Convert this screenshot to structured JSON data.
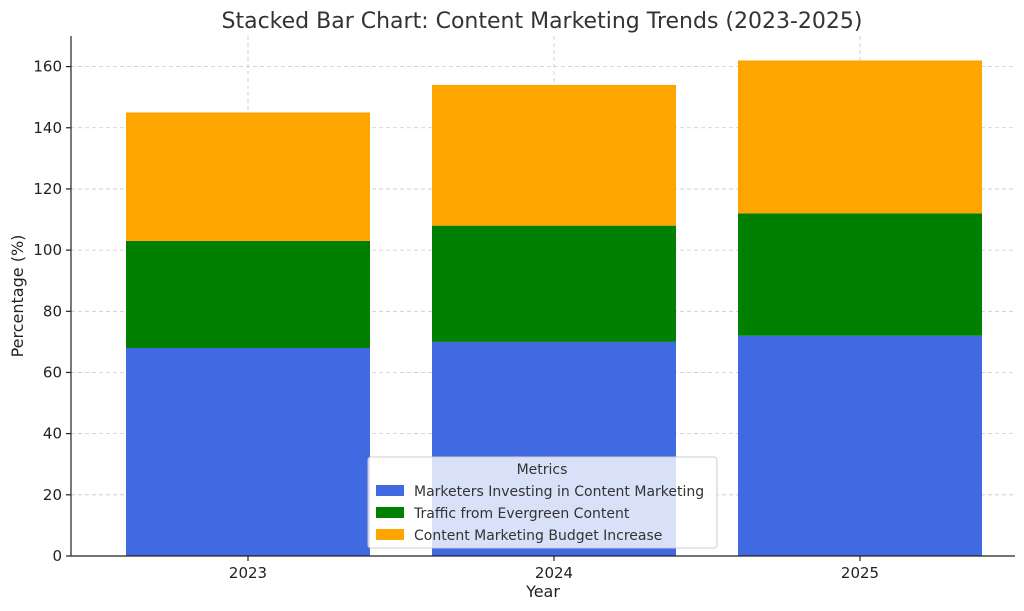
{
  "chart_data": {
    "type": "bar",
    "stacked": true,
    "title": "Stacked Bar Chart: Content Marketing Trends (2023-2025)",
    "xlabel": "Year",
    "ylabel": "Percentage (%)",
    "categories": [
      "2023",
      "2024",
      "2025"
    ],
    "ylim": [
      0,
      170
    ],
    "yticks": [
      0,
      20,
      40,
      60,
      80,
      100,
      120,
      140,
      160
    ],
    "grid": true,
    "series": [
      {
        "name": "Marketers Investing in Content Marketing",
        "values": [
          68,
          70,
          72
        ],
        "color": "#4169E1"
      },
      {
        "name": "Traffic from Evergreen Content",
        "values": [
          35,
          38,
          40
        ],
        "color": "#008000"
      },
      {
        "name": "Content Marketing Budget Increase",
        "values": [
          42,
          46,
          50
        ],
        "color": "#FFA500"
      }
    ],
    "legend": {
      "title": "Metrics",
      "placement": "bottom-center"
    }
  }
}
